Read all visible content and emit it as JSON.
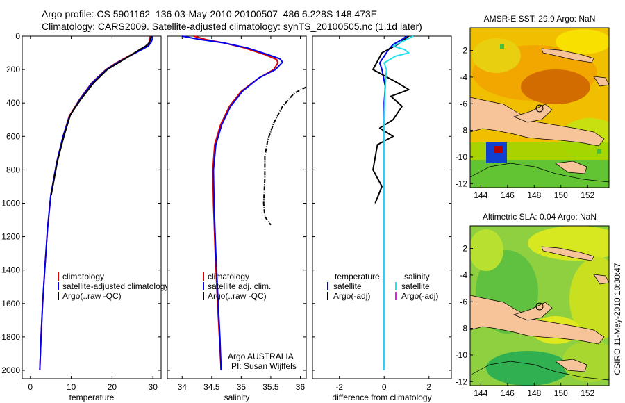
{
  "header": {
    "line1": "Argo profile: CS 5901162_136 03-May-2010 20100507_486 6.228S 148.473E",
    "line2": "Climatology: CARS2009. Satellite-adjusted climatology: synTS_20100505.nc (1.1d later)"
  },
  "side_label": "CSIRO 11-May-2010 10:30:47",
  "depth_ticks": [
    "0",
    "200",
    "400",
    "600",
    "800",
    "1000",
    "1200",
    "1400",
    "1600",
    "1800",
    "2000"
  ],
  "colors": {
    "climatology": "#e00000",
    "satellite": "#0000ee",
    "argo": "#000000",
    "sal_satellite": "#22e0f0",
    "sal_argo": "#e020e0",
    "land": "#f7c49a"
  },
  "chart_data": [
    {
      "type": "line",
      "id": "temperature",
      "xlabel": "temperature",
      "ylabel": "",
      "xlim": [
        -2,
        32
      ],
      "ylim": [
        2050,
        0
      ],
      "y_reversed": true,
      "xtick_labels": [
        "0",
        "10",
        "20",
        "30"
      ],
      "ytick_labels": [
        "0",
        "200",
        "400",
        "600",
        "800",
        "1000",
        "1200",
        "1400",
        "1600",
        "1800",
        "2000"
      ],
      "legend": [
        "climatology",
        "satellite-adjusted climatology",
        "Argo(..raw -QC)"
      ],
      "legend_position": "lower-right",
      "series": [
        {
          "name": "climatology",
          "color": "climatology",
          "points": [
            [
              29.3,
              0
            ],
            [
              29.2,
              20
            ],
            [
              29.0,
              40
            ],
            [
              28.5,
              60
            ],
            [
              27.0,
              80
            ],
            [
              24.0,
              120
            ],
            [
              21.0,
              160
            ],
            [
              18.5,
              200
            ],
            [
              15.0,
              280
            ],
            [
              12.0,
              380
            ],
            [
              9.5,
              480
            ],
            [
              8.0,
              600
            ],
            [
              6.5,
              750
            ],
            [
              5.0,
              950
            ],
            [
              4.2,
              1150
            ],
            [
              3.5,
              1400
            ],
            [
              3.0,
              1600
            ],
            [
              2.6,
              1800
            ],
            [
              2.3,
              2000
            ]
          ]
        },
        {
          "name": "satellite-adjusted climatology",
          "color": "satellite",
          "points": [
            [
              29.9,
              0
            ],
            [
              29.8,
              20
            ],
            [
              29.5,
              40
            ],
            [
              28.8,
              60
            ],
            [
              27.3,
              80
            ],
            [
              24.2,
              120
            ],
            [
              21.2,
              160
            ],
            [
              18.6,
              200
            ],
            [
              15.1,
              280
            ],
            [
              12.1,
              380
            ],
            [
              9.6,
              480
            ],
            [
              8.0,
              600
            ],
            [
              6.5,
              750
            ],
            [
              5.0,
              950
            ],
            [
              4.2,
              1150
            ],
            [
              3.5,
              1400
            ],
            [
              3.0,
              1600
            ],
            [
              2.6,
              1800
            ],
            [
              2.3,
              2000
            ]
          ]
        },
        {
          "name": "Argo(..raw -QC)",
          "color": "argo",
          "points": [
            [
              29.6,
              0
            ],
            [
              29.4,
              20
            ],
            [
              29.1,
              40
            ],
            [
              28.2,
              60
            ],
            [
              26.8,
              80
            ],
            [
              24.2,
              120
            ],
            [
              21.5,
              160
            ],
            [
              18.8,
              200
            ],
            [
              15.5,
              280
            ],
            [
              12.3,
              380
            ],
            [
              9.8,
              470
            ],
            [
              8.2,
              600
            ],
            [
              6.6,
              750
            ],
            [
              5.1,
              950
            ]
          ]
        }
      ]
    },
    {
      "type": "line",
      "id": "salinity",
      "xlabel": "salinity",
      "ylabel": "",
      "xlim": [
        33.75,
        36.1
      ],
      "ylim": [
        2050,
        0
      ],
      "y_reversed": true,
      "xtick_labels": [
        "34",
        "34.5",
        "35",
        "35.5",
        "36"
      ],
      "legend": [
        "climatology",
        "satellite adj. clim.",
        "Argo(..raw -QC)"
      ],
      "legend_position": "lower-right",
      "annotation": [
        "Argo AUSTRALIA",
        "PI: Susan Wijffels"
      ],
      "series": [
        {
          "name": "climatology",
          "color": "climatology",
          "points": [
            [
              34.2,
              0
            ],
            [
              34.4,
              20
            ],
            [
              34.7,
              40
            ],
            [
              35.05,
              70
            ],
            [
              35.4,
              110
            ],
            [
              35.6,
              140
            ],
            [
              35.62,
              160
            ],
            [
              35.55,
              200
            ],
            [
              35.3,
              250
            ],
            [
              35.0,
              330
            ],
            [
              34.8,
              420
            ],
            [
              34.65,
              530
            ],
            [
              34.55,
              650
            ],
            [
              34.52,
              800
            ],
            [
              34.53,
              1000
            ],
            [
              34.56,
              1300
            ],
            [
              34.6,
              1600
            ],
            [
              34.63,
              1800
            ],
            [
              34.66,
              2000
            ]
          ]
        },
        {
          "name": "satellite adj. clim.",
          "color": "satellite",
          "points": [
            [
              34.0,
              0
            ],
            [
              34.3,
              20
            ],
            [
              34.7,
              40
            ],
            [
              35.1,
              70
            ],
            [
              35.45,
              110
            ],
            [
              35.65,
              135
            ],
            [
              35.7,
              155
            ],
            [
              35.58,
              200
            ],
            [
              35.3,
              250
            ],
            [
              35.02,
              330
            ],
            [
              34.82,
              420
            ],
            [
              34.67,
              530
            ],
            [
              34.57,
              650
            ],
            [
              34.53,
              800
            ],
            [
              34.54,
              1000
            ],
            [
              34.57,
              1300
            ],
            [
              34.61,
              1600
            ],
            [
              34.64,
              1800
            ],
            [
              34.66,
              2000
            ]
          ]
        },
        {
          "name": "Argo(..raw -QC)",
          "color": "argo",
          "points": [
            [
              36.1,
              305
            ],
            [
              35.9,
              340
            ],
            [
              35.7,
              420
            ],
            [
              35.55,
              520
            ],
            [
              35.45,
              620
            ],
            [
              35.4,
              720
            ],
            [
              35.4,
              850
            ],
            [
              35.38,
              1000
            ],
            [
              35.4,
              1080
            ],
            [
              35.5,
              1130
            ]
          ]
        }
      ]
    },
    {
      "type": "line",
      "id": "difference",
      "xlabel": "difference from climatology",
      "ylabel": "",
      "xlim": [
        -3.2,
        3.0
      ],
      "ylim": [
        2050,
        0
      ],
      "y_reversed": true,
      "xtick_labels": [
        "-2",
        "0",
        "2"
      ],
      "legend": [
        "temperature",
        "satellite",
        "Argo(-adj)",
        "salinity",
        "satellite",
        "Argo(-adj)"
      ],
      "legend_position": "lower",
      "series": [
        {
          "name": "temperature satellite",
          "color": "satellite",
          "points": [
            [
              1.0,
              0
            ],
            [
              0.8,
              20
            ],
            [
              0.4,
              50
            ],
            [
              0.2,
              80
            ],
            [
              0.0,
              120
            ],
            [
              -0.2,
              160
            ],
            [
              -0.1,
              200
            ],
            [
              0.05,
              300
            ],
            [
              0.0,
              400
            ],
            [
              0.0,
              600
            ],
            [
              0.0,
              1000
            ],
            [
              0.0,
              1500
            ],
            [
              0.0,
              2000
            ]
          ]
        },
        {
          "name": "temperature Argo(-adj)",
          "color": "argo",
          "points": [
            [
              1.1,
              0
            ],
            [
              0.6,
              50
            ],
            [
              -0.1,
              100
            ],
            [
              -0.5,
              200
            ],
            [
              0.6,
              280
            ],
            [
              1.1,
              320
            ],
            [
              0.3,
              360
            ],
            [
              0.8,
              420
            ],
            [
              0.4,
              500
            ],
            [
              -0.2,
              550
            ],
            [
              0.4,
              600
            ],
            [
              -0.3,
              650
            ],
            [
              -0.5,
              800
            ],
            [
              -0.1,
              900
            ],
            [
              -0.4,
              1000
            ]
          ]
        },
        {
          "name": "salinity satellite",
          "color": "sal_satellite",
          "points": [
            [
              1.3,
              0
            ],
            [
              0.7,
              40
            ],
            [
              0.4,
              60
            ],
            [
              0.9,
              80
            ],
            [
              1.1,
              100
            ],
            [
              0.5,
              120
            ],
            [
              0.0,
              160
            ],
            [
              0.1,
              200
            ],
            [
              0.05,
              300
            ],
            [
              0.0,
              500
            ],
            [
              0.0,
              900
            ],
            [
              0.0,
              1500
            ],
            [
              0.0,
              2000
            ]
          ]
        }
      ]
    },
    {
      "type": "heatmap",
      "id": "sst-map",
      "title": "AMSR-E SST: 29.9 Argo: NaN",
      "xtick_labels": [
        "144",
        "146",
        "148",
        "150",
        "152"
      ],
      "ytick_labels": [
        "-2",
        "-4",
        "-6",
        "-8",
        "-10",
        "-12"
      ],
      "xlim": [
        143.2,
        153.6
      ],
      "ylim": [
        -12.3,
        -0.3
      ],
      "marker": [
        148.473,
        -6.228
      ]
    },
    {
      "type": "heatmap",
      "id": "sla-map",
      "title": "Altimetric SLA: 0.04 Argo: NaN",
      "xtick_labels": [
        "144",
        "146",
        "148",
        "150",
        "152"
      ],
      "ytick_labels": [
        "-2",
        "-4",
        "-6",
        "-8",
        "-10",
        "-12"
      ],
      "xlim": [
        143.2,
        153.6
      ],
      "ylim": [
        -12.3,
        -0.3
      ],
      "marker": [
        148.473,
        -6.228
      ]
    }
  ]
}
